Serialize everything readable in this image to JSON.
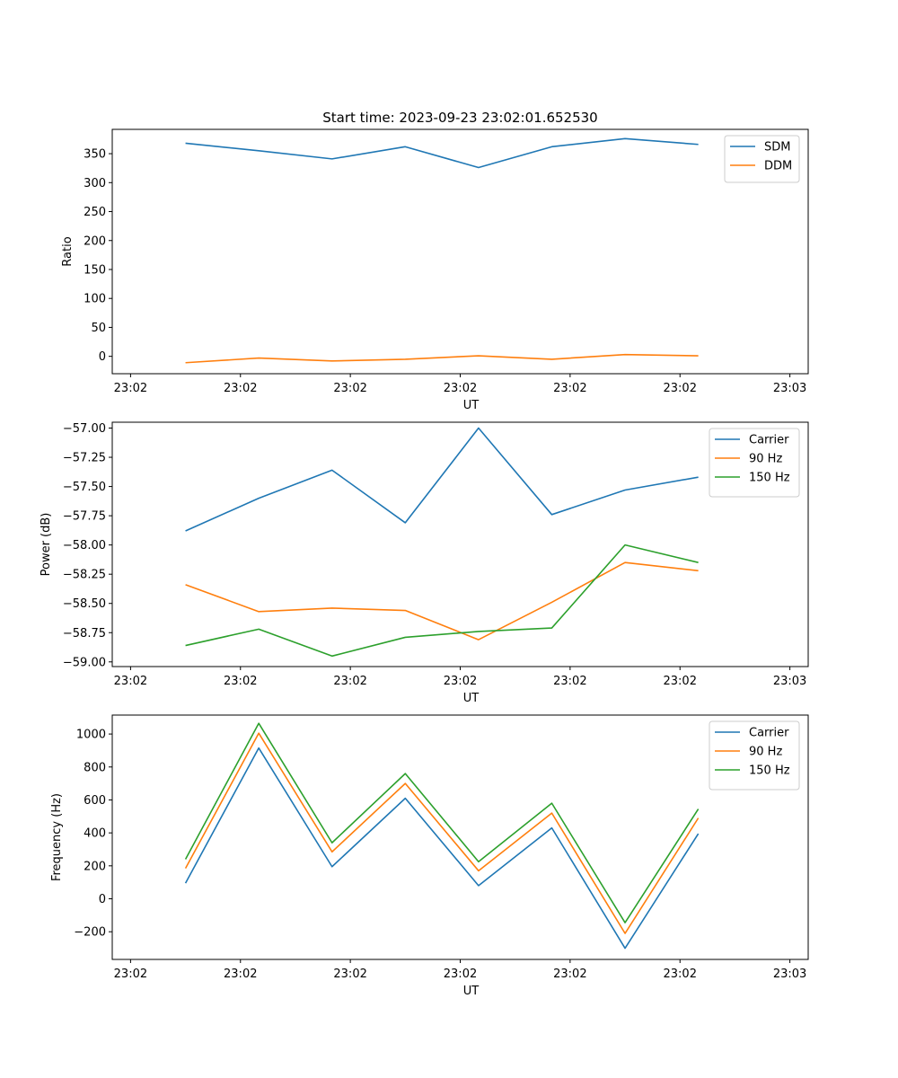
{
  "chart_data": [
    {
      "type": "line",
      "title": "Start time: 2023-09-23 23:02:01.652530",
      "xlabel": "UT",
      "ylabel": "Ratio",
      "xtick_labels": [
        "23:02",
        "23:02",
        "23:02",
        "23:02",
        "23:02",
        "23:02",
        "23:03"
      ],
      "x": [
        1.0,
        2.0,
        3.0,
        4.0,
        5.0,
        6.0,
        7.0,
        8.0
      ],
      "xlim": [
        0.0,
        9.5
      ],
      "xticks": [
        0.25,
        1.75,
        3.25,
        4.75,
        6.25,
        7.75,
        9.25
      ],
      "ylim": [
        -30,
        392
      ],
      "yticks": [
        0,
        50,
        100,
        150,
        200,
        250,
        300,
        350
      ],
      "ytick_labels": [
        "0",
        "50",
        "100",
        "150",
        "200",
        "250",
        "300",
        "350"
      ],
      "legend_loc": "top-right",
      "series": [
        {
          "name": "SDM",
          "color": "#1f77b4",
          "values": [
            368,
            355,
            341,
            362,
            326,
            362,
            376,
            366
          ]
        },
        {
          "name": "DDM",
          "color": "#ff7f0e",
          "values": [
            -11,
            -3,
            -8,
            -5,
            1,
            -5,
            3,
            1
          ]
        }
      ]
    },
    {
      "type": "line",
      "title": "",
      "xlabel": "UT",
      "ylabel": "Power (dB)",
      "xtick_labels": [
        "23:02",
        "23:02",
        "23:02",
        "23:02",
        "23:02",
        "23:02",
        "23:03"
      ],
      "x": [
        1.0,
        2.0,
        3.0,
        4.0,
        5.0,
        6.0,
        7.0,
        8.0
      ],
      "xlim": [
        0.0,
        9.5
      ],
      "xticks": [
        0.25,
        1.75,
        3.25,
        4.75,
        6.25,
        7.75,
        9.25
      ],
      "ylim": [
        -59.04,
        -56.95
      ],
      "yticks": [
        -59.0,
        -58.75,
        -58.5,
        -58.25,
        -58.0,
        -57.75,
        -57.5,
        -57.25,
        -57.0
      ],
      "ytick_labels": [
        "−59.00",
        "−58.75",
        "−58.50",
        "−58.25",
        "−58.00",
        "−57.75",
        "−57.50",
        "−57.25",
        "−57.00"
      ],
      "legend_loc": "top-right",
      "series": [
        {
          "name": "Carrier",
          "color": "#1f77b4",
          "values": [
            -57.88,
            -57.6,
            -57.36,
            -57.81,
            -57.0,
            -57.74,
            -57.53,
            -57.42
          ]
        },
        {
          "name": "90 Hz",
          "color": "#ff7f0e",
          "values": [
            -58.34,
            -58.57,
            -58.54,
            -58.56,
            -58.81,
            -58.49,
            -58.15,
            -58.22
          ]
        },
        {
          "name": "150 Hz",
          "color": "#2ca02c",
          "values": [
            -58.86,
            -58.72,
            -58.95,
            -58.79,
            -58.74,
            -58.71,
            -58.0,
            -58.15
          ]
        }
      ]
    },
    {
      "type": "line",
      "title": "",
      "xlabel": "UT",
      "ylabel": "Frequency (Hz)",
      "xtick_labels": [
        "23:02",
        "23:02",
        "23:02",
        "23:02",
        "23:02",
        "23:02",
        "23:03"
      ],
      "x": [
        1.0,
        2.0,
        3.0,
        4.0,
        5.0,
        6.0,
        7.0,
        8.0
      ],
      "xlim": [
        0.0,
        9.5
      ],
      "xticks": [
        0.25,
        1.75,
        3.25,
        4.75,
        6.25,
        7.75,
        9.25
      ],
      "ylim": [
        -368,
        1115
      ],
      "yticks": [
        -200,
        0,
        200,
        400,
        600,
        800,
        1000
      ],
      "ytick_labels": [
        "−200",
        "0",
        "200",
        "400",
        "600",
        "800",
        "1000"
      ],
      "legend_loc": "top-right",
      "series": [
        {
          "name": "Carrier",
          "color": "#1f77b4",
          "values": [
            95,
            915,
            195,
            610,
            80,
            430,
            -300,
            395
          ]
        },
        {
          "name": "90 Hz",
          "color": "#ff7f0e",
          "values": [
            185,
            1005,
            285,
            700,
            170,
            520,
            -210,
            490
          ]
        },
        {
          "name": "150 Hz",
          "color": "#2ca02c",
          "values": [
            240,
            1065,
            340,
            760,
            225,
            580,
            -145,
            545
          ]
        }
      ]
    }
  ]
}
